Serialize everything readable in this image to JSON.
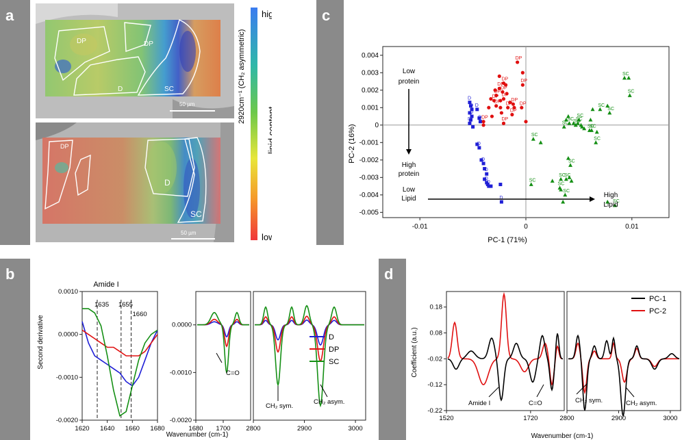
{
  "panels": {
    "a": "a",
    "b": "b",
    "c": "c",
    "d": "d"
  },
  "panel_a": {
    "regions_top": [
      "DP",
      "DP",
      "D",
      "SC"
    ],
    "regions_bottom": [
      "DP",
      "D",
      "SC"
    ],
    "scalebar_top": "50 µm",
    "scalebar_bottom": "50 µm",
    "colorbar": {
      "high": "high",
      "low": "low",
      "label_measure": "2920cm⁻¹ (CH₂ asymmetric)",
      "label_quantity": "lipid content"
    }
  },
  "chart_data": [
    {
      "id": "c",
      "type": "scatter",
      "xlabel": "PC-1 (71%)",
      "ylabel": "PC-2 (16%)",
      "xlim": [
        -0.0135,
        0.0135
      ],
      "ylim": [
        -0.0053,
        0.0045
      ],
      "xticks": [
        "-0.01",
        "0",
        "0.01"
      ],
      "yticks": [
        "0.004",
        "0.003",
        "0.002",
        "0.001",
        "0",
        "-0.001",
        "-0.002",
        "-0.003",
        "-0.004",
        "-0.005"
      ],
      "annotations": {
        "low_protein": "Low protein",
        "high_protein": "High protein",
        "low_lipid": "Low Lipid",
        "high_lipid": "High Lipid"
      },
      "series": [
        {
          "name": "D",
          "color": "#1f1fd6",
          "marker": "square",
          "points": [
            [
              -0.0053,
              0.0013
            ],
            [
              -0.0052,
              0.0011
            ],
            [
              -0.0051,
              0.0009
            ],
            [
              -0.0053,
              0.0007
            ],
            [
              -0.0051,
              0.0005
            ],
            [
              -0.0052,
              0.0003
            ],
            [
              -0.0053,
              0.0001
            ],
            [
              -0.005,
              -0.0001
            ],
            [
              -0.0046,
              0.0009
            ],
            [
              -0.0044,
              0.0004
            ],
            [
              -0.0043,
              0.0002
            ],
            [
              -0.0046,
              -0.0011
            ],
            [
              -0.0044,
              -0.0013
            ],
            [
              -0.0042,
              -0.002
            ],
            [
              -0.004,
              -0.0022
            ],
            [
              -0.0039,
              -0.0025
            ],
            [
              -0.0037,
              -0.0028
            ],
            [
              -0.0039,
              -0.0031
            ],
            [
              -0.0037,
              -0.0033
            ],
            [
              -0.0036,
              -0.0034
            ],
            [
              -0.0035,
              -0.0035
            ],
            [
              -0.0033,
              -0.0035
            ],
            [
              -0.0023,
              -0.0044
            ],
            [
              -0.0024,
              -0.0034
            ]
          ]
        },
        {
          "name": "DP",
          "color": "#e01010",
          "marker": "circle",
          "points": [
            [
              -0.0008,
              0.0036
            ],
            [
              -0.0003,
              0.003
            ],
            [
              -0.0003,
              0.0023
            ],
            [
              -0.0025,
              0.0028
            ],
            [
              -0.0021,
              0.0024
            ],
            [
              -0.0019,
              0.0023
            ],
            [
              -0.0025,
              0.0021
            ],
            [
              -0.0029,
              0.002
            ],
            [
              -0.0022,
              0.0019
            ],
            [
              -0.0018,
              0.0018
            ],
            [
              -0.0028,
              0.0017
            ],
            [
              -0.0033,
              0.0015
            ],
            [
              -0.003,
              0.0014
            ],
            [
              -0.0024,
              0.0014
            ],
            [
              -0.0021,
              0.0015
            ],
            [
              -0.0015,
              0.0013
            ],
            [
              -0.0012,
              0.0012
            ],
            [
              -0.0035,
              0.001
            ],
            [
              -0.0028,
              0.0011
            ],
            [
              -0.0024,
              0.001
            ],
            [
              -0.0017,
              0.001
            ],
            [
              -0.0011,
              0.001
            ],
            [
              -0.0004,
              0.001
            ],
            [
              -0.0023,
              0.0007
            ],
            [
              -0.0013,
              0.0006
            ],
            [
              -0.0032,
              0.0005
            ],
            [
              -0.004,
              0.0002
            ],
            [
              -0.004,
              0.0
            ],
            [
              -0.0021,
              0.0001
            ],
            [
              0.0,
              0.0002
            ]
          ]
        },
        {
          "name": "SC",
          "color": "#148f14",
          "marker": "triangle",
          "points": [
            [
              0.0093,
              0.0027
            ],
            [
              0.0097,
              0.0027
            ],
            [
              0.0098,
              0.0017
            ],
            [
              0.0063,
              0.0009
            ],
            [
              0.007,
              0.0009
            ],
            [
              0.0077,
              0.0011
            ],
            [
              0.0079,
              0.0007
            ],
            [
              0.004,
              0.0005
            ],
            [
              0.005,
              0.0003
            ],
            [
              0.0038,
              0.0003
            ],
            [
              0.0041,
              0.0001
            ],
            [
              0.0045,
              0.0001
            ],
            [
              0.0049,
              0.0001
            ],
            [
              0.0052,
              0.0
            ],
            [
              0.0036,
              -0.0001
            ],
            [
              0.0061,
              0.0003
            ],
            [
              0.006,
              -0.0003
            ],
            [
              0.0055,
              -0.0002
            ],
            [
              0.0062,
              -0.0003
            ],
            [
              0.0067,
              -0.0004
            ],
            [
              0.0047,
              0.0
            ],
            [
              0.0053,
              -0.0001
            ],
            [
              0.0007,
              -0.0008
            ],
            [
              0.0014,
              -0.001
            ],
            [
              0.0066,
              -0.001
            ],
            [
              0.004,
              -0.0019
            ],
            [
              0.0042,
              -0.0023
            ],
            [
              0.0041,
              -0.003
            ],
            [
              0.0038,
              -0.0031
            ],
            [
              0.0043,
              -0.0032
            ],
            [
              0.0033,
              -0.0031
            ],
            [
              0.0025,
              -0.0032
            ],
            [
              0.0032,
              -0.0036
            ],
            [
              0.0033,
              -0.0037
            ],
            [
              0.0037,
              -0.004
            ],
            [
              0.0035,
              -0.0044
            ],
            [
              0.0005,
              -0.0034
            ],
            [
              0.0077,
              -0.0044
            ],
            [
              0.0084,
              -0.0046
            ]
          ]
        }
      ]
    },
    {
      "id": "b-left",
      "type": "line",
      "title": "Amide I",
      "xlabel": "",
      "ylabel": "Second derivative",
      "xlim": [
        1620,
        1680
      ],
      "ylim": [
        -0.002,
        0.001
      ],
      "xticks": [
        "1620",
        "1640",
        "1660",
        "1680"
      ],
      "yticks": [
        "0.0010",
        "0.0000",
        "-0.0010",
        "-0.0020"
      ],
      "vlines": [
        {
          "x": 1632,
          "label": "1635"
        },
        {
          "x": 1651,
          "label": "1655"
        },
        {
          "x": 1659,
          "label": "1660"
        }
      ],
      "series": [
        {
          "name": "D",
          "color": "#1f1fd6",
          "x": [
            1620,
            1625,
            1630,
            1635,
            1640,
            1645,
            1650,
            1655,
            1660,
            1665,
            1670,
            1675,
            1680
          ],
          "y": [
            0.0003,
            -0.0002,
            -0.0005,
            -0.0006,
            -0.0007,
            -0.0008,
            -0.0009,
            -0.0011,
            -0.0012,
            -0.001,
            -0.0006,
            -0.0002,
            0.0001
          ]
        },
        {
          "name": "DP",
          "color": "#e01010",
          "x": [
            1620,
            1625,
            1630,
            1635,
            1640,
            1645,
            1650,
            1655,
            1660,
            1665,
            1670,
            1675,
            1680
          ],
          "y": [
            0.0001,
            0.0,
            -0.0001,
            -0.0002,
            -0.0003,
            -0.0003,
            -0.0004,
            -0.0005,
            -0.0005,
            -0.0005,
            -0.0004,
            -0.0002,
            0.0
          ]
        },
        {
          "name": "SC",
          "color": "#148f14",
          "x": [
            1620,
            1625,
            1630,
            1635,
            1640,
            1645,
            1650,
            1655,
            1660,
            1665,
            1670,
            1675,
            1680
          ],
          "y": [
            0.0006,
            0.0006,
            0.0005,
            0.0002,
            -0.0005,
            -0.0013,
            -0.0019,
            -0.0018,
            -0.0012,
            -0.0006,
            -0.0002,
            0.0,
            0.0001
          ]
        }
      ]
    },
    {
      "id": "b-right",
      "type": "line",
      "xlabel": "Wavenumber (cm-1)",
      "xticks": [
        "1680",
        "1700",
        "2800",
        "2900",
        "3000"
      ],
      "yticks": [
        "0.0000",
        "-0.0010",
        "-0.0020"
      ],
      "ylim": [
        -0.002,
        0.0007
      ],
      "annotations": {
        "co": "C=O",
        "ch2sym": "CH₂ sym.",
        "ch2asym": "CH₂ asym."
      },
      "legend": [
        "D",
        "DP",
        "SC"
      ],
      "legend_position": "bottom-right"
    },
    {
      "id": "d",
      "type": "line",
      "xlabel": "Wavenumber (cm-1)",
      "ylabel": "Coefficient (a.u.)",
      "ylim": [
        -0.22,
        0.24
      ],
      "yticks": [
        "0.18",
        "0.08",
        "-0.02",
        "-0.12",
        "-0.22"
      ],
      "xticks": [
        "1520",
        "1720",
        "2800",
        "2900",
        "3000"
      ],
      "annotations": {
        "amide": "Amide I",
        "co": "C=O",
        "ch2sym": "CH₂ sym.",
        "ch2asym": "CH₂ asym."
      },
      "legend_position": "top-right",
      "series": [
        {
          "name": "PC-1",
          "color": "#000000"
        },
        {
          "name": "PC-2",
          "color": "#e01010"
        }
      ]
    }
  ]
}
